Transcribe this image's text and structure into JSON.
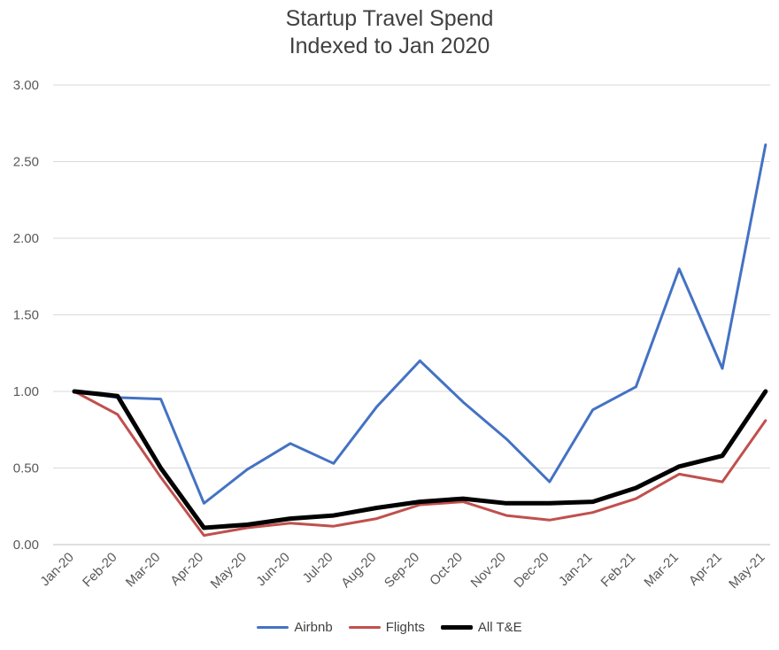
{
  "chart_data": {
    "type": "line",
    "title": "Startup Travel Spend",
    "subtitle": "Indexed to Jan 2020",
    "xlabel": "",
    "ylabel": "",
    "ylim": [
      0,
      3
    ],
    "yticks": [
      "0.00",
      "0.50",
      "1.00",
      "1.50",
      "2.00",
      "2.50",
      "3.00"
    ],
    "grid": true,
    "legend_position": "bottom",
    "categories": [
      "Jan-20",
      "Feb-20",
      "Mar-20",
      "Apr-20",
      "May-20",
      "Jun-20",
      "Jul-20",
      "Aug-20",
      "Sep-20",
      "Oct-20",
      "Nov-20",
      "Dec-20",
      "Jan-21",
      "Feb-21",
      "Mar-21",
      "Apr-21",
      "May-21"
    ],
    "series": [
      {
        "name": "Airbnb",
        "color": "#4472C4",
        "values": [
          1.0,
          0.96,
          0.95,
          0.27,
          0.49,
          0.66,
          0.53,
          0.9,
          1.2,
          0.93,
          0.69,
          0.41,
          0.88,
          1.03,
          1.8,
          1.15,
          2.61
        ]
      },
      {
        "name": "Flights",
        "color": "#C0504D",
        "values": [
          1.0,
          0.85,
          0.44,
          0.06,
          0.11,
          0.14,
          0.12,
          0.17,
          0.26,
          0.28,
          0.19,
          0.16,
          0.21,
          0.3,
          0.46,
          0.41,
          0.81
        ]
      },
      {
        "name": "All T&E",
        "color": "#000000",
        "values": [
          1.0,
          0.97,
          0.5,
          0.11,
          0.13,
          0.17,
          0.19,
          0.24,
          0.28,
          0.3,
          0.27,
          0.27,
          0.28,
          0.37,
          0.51,
          0.58,
          1.0
        ]
      }
    ]
  }
}
